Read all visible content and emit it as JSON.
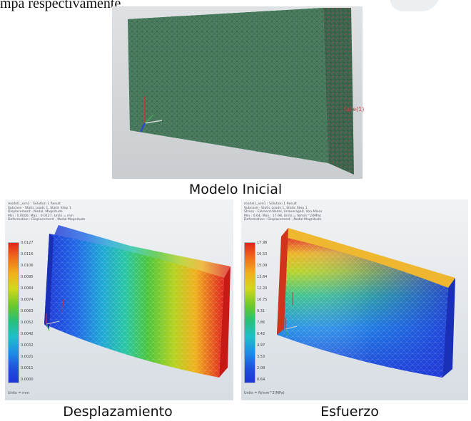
{
  "header": {
    "partial_text": "mpa respectivamente."
  },
  "figures": {
    "initial": {
      "caption": "Modelo Inicial",
      "face_label": "face(1)"
    },
    "displacement": {
      "caption": "Desplazamiento",
      "hud": [
        "model1_sim1 : Solution 1 Result",
        "Subcase - Static Loads 1, Static Step 1",
        "Displacement - Nodal, Magnitude",
        "Min : 0.0000, Max : 0.0127, Units = mm",
        "Deformation : Displacement - Nodal Magnitude"
      ],
      "legend_ticks": [
        "0.0127",
        "0.0116",
        "0.0106",
        "0.0095",
        "0.0084",
        "0.0074",
        "0.0063",
        "0.0052",
        "0.0042",
        "0.0032",
        "0.0021",
        "0.0011",
        "0.0000"
      ],
      "units": "Units = mm"
    },
    "stress": {
      "caption": "Esfuerzo",
      "hud": [
        "model1_sim1 : Solution 1 Result",
        "Subcase - Static Loads 1, Static Step 1",
        "Stress - Element-Nodal, Unaveraged, Von-Mises",
        "Min : 0.64, Max : 17.98, Units = N/mm^2(MPa)",
        "Deformation : Displacement - Nodal Magnitude"
      ],
      "legend_ticks": [
        "17.98",
        "16.53",
        "15.09",
        "13.64",
        "12.20",
        "10.75",
        "9.31",
        "7.86",
        "6.42",
        "4.97",
        "3.53",
        "2.08",
        "0.64"
      ],
      "units": "Units = N/mm^2(MPa)"
    }
  },
  "colors": {
    "mesh_green": "#4f7f62",
    "scale_red": "#e0231f",
    "scale_blue": "#1f36d6"
  }
}
